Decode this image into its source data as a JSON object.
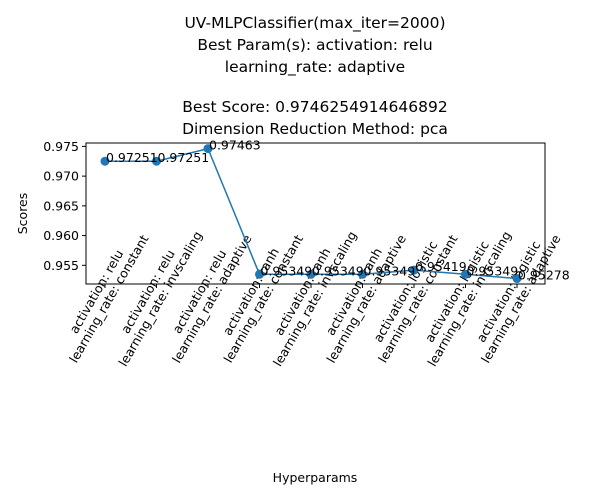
{
  "chart_data": {
    "type": "line",
    "title_lines": [
      "UV-MLPClassifier(max_iter=2000)",
      "Best Param(s): activation: relu",
      "learning_rate: adaptive",
      "",
      "Best Score: 0.9746254914646892",
      "Dimension Reduction Method: pca"
    ],
    "xlabel": "Hyperparams",
    "ylabel": "Scores",
    "categories": [
      [
        "activation: relu",
        "learning_rate: constant"
      ],
      [
        "activation: relu",
        "learning_rate: invscaling"
      ],
      [
        "activation: relu",
        "learning_rate: adaptive"
      ],
      [
        "activation: tanh",
        "learning_rate: constant"
      ],
      [
        "activation: tanh",
        "learning_rate: invscaling"
      ],
      [
        "activation: tanh",
        "learning_rate: adaptive"
      ],
      [
        "activation: logistic",
        "learning_rate: constant"
      ],
      [
        "activation: logistic",
        "learning_rate: invscaling"
      ],
      [
        "activation: logistic",
        "learning_rate: adaptive"
      ]
    ],
    "values": [
      0.97251,
      0.97251,
      0.97463,
      0.95349,
      0.95349,
      0.95349,
      0.95419,
      0.95349,
      0.95278
    ],
    "data_labels": [
      "0.97251",
      "0.97251",
      "0.97463",
      "0.95349",
      "0.95349",
      "0.95349",
      "0.95419",
      "0.95349",
      "0.95278"
    ],
    "yticks": [
      0.955,
      0.96,
      0.965,
      0.97,
      0.975
    ],
    "ytick_labels": [
      "0.955",
      "0.960",
      "0.965",
      "0.970",
      "0.975"
    ],
    "ylim": [
      0.95186,
      0.97557
    ],
    "grid": false,
    "line_color": "#1f77b4"
  }
}
